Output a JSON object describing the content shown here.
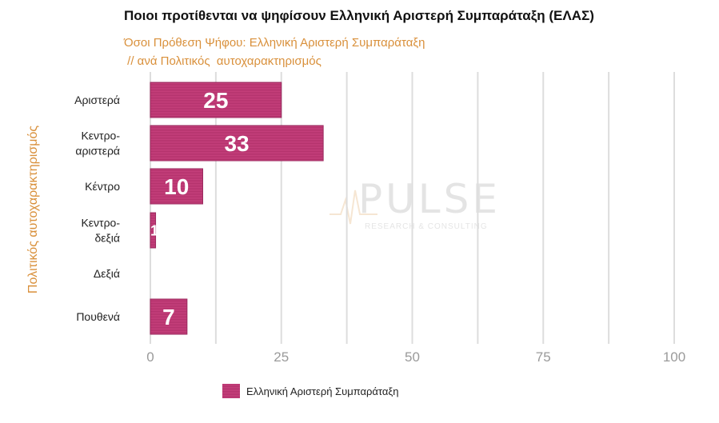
{
  "title": "Ποιοι προτίθενται να ψηφίσουν Ελληνική Αριστερή Συμπαράταξη (ΕΛΑΣ)",
  "subtitle_line1": "Όσοι Πρόθεση Ψήφου: Ελληνική Αριστερή Συμπαράταξη",
  "subtitle_line2": " // ανά Πολιτικός  αυτοχαρακτηρισμός",
  "watermark": {
    "name": "PULSE",
    "tagline": "RESEARCH & CONSULTING"
  },
  "colors": {
    "bar": "#c0387a",
    "bar_stripe": "#a92d66",
    "accent_text": "#d9903b",
    "grid": "#dddddd",
    "tick": "#9a9a9a"
  },
  "chart_data": {
    "type": "bar",
    "orientation": "horizontal",
    "title": "Ποιοι προτίθενται να ψηφίσουν Ελληνική Αριστερή Συμπαράταξη (ΕΛΑΣ)",
    "ylabel": "Πολιτικός  αυτοχαρακτηρισμός",
    "xlabel": "",
    "categories": [
      [
        "Αριστερά"
      ],
      [
        "Κεντρο-",
        "αριστερά"
      ],
      [
        "Κέντρο"
      ],
      [
        "Κεντρο-",
        "δεξιά"
      ],
      [
        "Δεξιά"
      ],
      [
        "Πουθενά"
      ]
    ],
    "series": [
      {
        "name": "Ελληνική Αριστερή Συμπαράταξη",
        "values": [
          25,
          33,
          10,
          1,
          0,
          7
        ]
      }
    ],
    "data_labels": [
      "25",
      "33",
      "10",
      "1",
      "",
      "7"
    ],
    "xlim": [
      0,
      100
    ],
    "xticks": [
      0,
      25,
      50,
      75,
      100
    ],
    "grid": true,
    "legend_position": "bottom-left"
  }
}
